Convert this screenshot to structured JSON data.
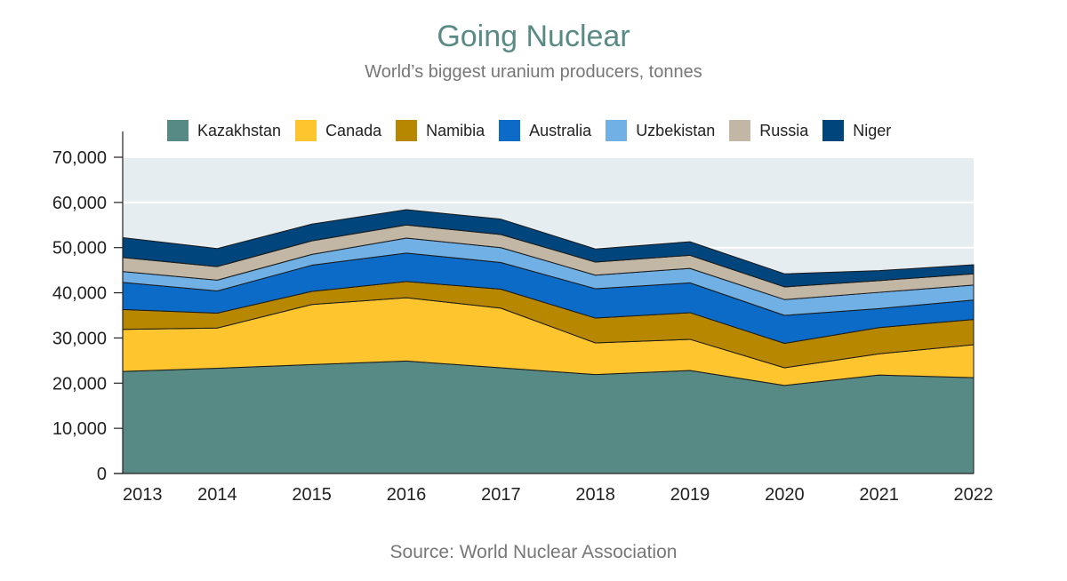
{
  "title": "Going Nuclear",
  "subtitle": "World’s biggest uranium producers, tonnes",
  "source": "Source: World Nuclear Association",
  "chart_data": {
    "type": "area",
    "stacked": true,
    "title": "Going Nuclear",
    "subtitle": "World’s biggest uranium producers, tonnes",
    "xlabel": "",
    "ylabel": "",
    "x": [
      "2013",
      "2014",
      "2015",
      "2016",
      "2017",
      "2018",
      "2019",
      "2020",
      "2021",
      "2022"
    ],
    "ylim": [
      0,
      70000
    ],
    "yticks": [
      0,
      10000,
      20000,
      30000,
      40000,
      50000,
      60000,
      70000
    ],
    "ytick_labels": [
      "0",
      "10,000",
      "20,000",
      "30,000",
      "40,000",
      "50,000",
      "60,000",
      "70,000"
    ],
    "grid": true,
    "legend_position": "top",
    "background_color": "#e6edf0",
    "series": [
      {
        "name": "Kazakhstan",
        "color": "#578985",
        "values": [
          22600,
          23300,
          24100,
          24900,
          23400,
          21900,
          22800,
          19500,
          21800,
          21200
        ]
      },
      {
        "name": "Canada",
        "color": "#fec52e",
        "values": [
          9300,
          8900,
          13300,
          14000,
          13200,
          7000,
          6900,
          3900,
          4700,
          7300
        ]
      },
      {
        "name": "Namibia",
        "color": "#b88700",
        "values": [
          4400,
          3300,
          2900,
          3600,
          4200,
          5500,
          5900,
          5400,
          5800,
          5600
        ]
      },
      {
        "name": "Australia",
        "color": "#0b6bc6",
        "values": [
          6000,
          4900,
          5800,
          6300,
          5900,
          6500,
          6600,
          6200,
          4200,
          4300
        ]
      },
      {
        "name": "Uzbekistan",
        "color": "#70b0e5",
        "values": [
          2400,
          2400,
          2400,
          3300,
          3300,
          3000,
          3200,
          3500,
          3600,
          3300
        ]
      },
      {
        "name": "Russia",
        "color": "#c2b6a5",
        "values": [
          3100,
          3000,
          3000,
          2900,
          2900,
          2900,
          2900,
          2800,
          2600,
          2500
        ]
      },
      {
        "name": "Niger",
        "color": "#00457c",
        "values": [
          4400,
          4000,
          3700,
          3400,
          3400,
          2900,
          3000,
          2900,
          2200,
          2000
        ]
      }
    ]
  }
}
